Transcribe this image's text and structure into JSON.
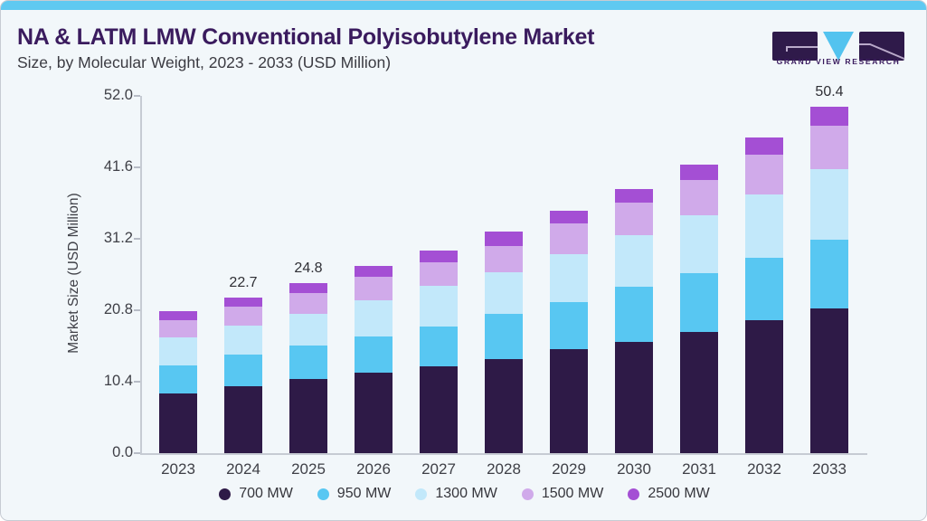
{
  "header": {
    "title": "NA & LATM LMW Conventional Polyisobutylene Market",
    "subtitle": "Size, by Molecular Weight, 2023 - 2033 (USD Million)"
  },
  "logo": {
    "text": "GRAND VIEW RESEARCH",
    "block_color": "#2f1a4a",
    "triangle_color": "#53c3ef"
  },
  "colors": {
    "card_background": "#f2f7fa",
    "top_strip": "#5fc9f1",
    "title_text": "#3a1b5e",
    "axis_line": "#c6cbd3"
  },
  "chart_data": {
    "type": "bar",
    "stacked": true,
    "title": "NA & LATM LMW Conventional Polyisobutylene Market Size, by Molecular Weight, 2023 - 2033 (USD Million)",
    "categories": [
      "2023",
      "2024",
      "2025",
      "2026",
      "2027",
      "2028",
      "2029",
      "2030",
      "2031",
      "2032",
      "2033"
    ],
    "series": [
      {
        "name": "700 MW",
        "color": "#2e1a47",
        "values": [
          8.7,
          9.8,
          10.8,
          11.7,
          12.6,
          13.7,
          15.1,
          16.2,
          17.7,
          19.4,
          21.1
        ]
      },
      {
        "name": "950 MW",
        "color": "#58c7f2",
        "values": [
          4.1,
          4.5,
          4.9,
          5.3,
          5.8,
          6.6,
          6.9,
          8.0,
          8.5,
          9.0,
          10.0
        ]
      },
      {
        "name": "1300 MW",
        "color": "#c2e8fa",
        "values": [
          4.1,
          4.2,
          4.6,
          5.2,
          5.9,
          6.0,
          7.0,
          7.5,
          8.4,
          9.3,
          10.2
        ]
      },
      {
        "name": "1500 MW",
        "color": "#d0aaea",
        "values": [
          2.5,
          2.8,
          3.0,
          3.5,
          3.5,
          3.9,
          4.5,
          4.8,
          5.1,
          5.7,
          6.4
        ]
      },
      {
        "name": "2500 MW",
        "color": "#a44fd4",
        "values": [
          1.3,
          1.4,
          1.5,
          1.5,
          1.7,
          2.0,
          1.8,
          1.9,
          2.3,
          2.6,
          2.7
        ]
      }
    ],
    "value_labels": {
      "2024": "22.7",
      "2025": "24.8",
      "2033": "50.4"
    },
    "ylabel": "Market Size (USD Million)",
    "xlabel": "",
    "yticks": [
      0.0,
      10.4,
      20.8,
      31.2,
      41.6,
      52.0
    ],
    "ylim": [
      0,
      52
    ],
    "grid": false,
    "legend_position": "bottom"
  }
}
